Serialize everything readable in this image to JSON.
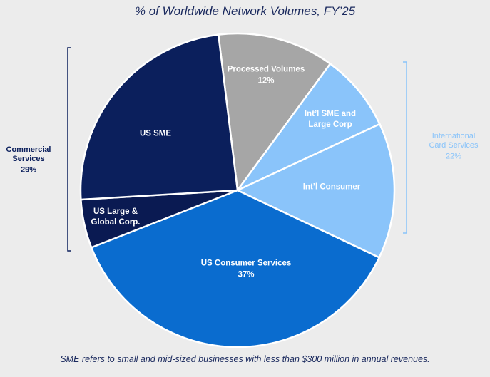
{
  "chart_data": {
    "type": "pie",
    "title": "% of Worldwide Network Volumes, FY’25",
    "categories": [
      "Processed Volumes",
      "Int’l SME and Large Corp",
      "Int’l Consumer",
      "US Consumer Services",
      "US Large & Global Corp.",
      "US SME"
    ],
    "values": [
      12,
      8,
      14,
      37,
      5,
      24
    ],
    "value_labels": [
      "12%",
      null,
      null,
      "37%",
      null,
      null
    ],
    "colors": [
      "#a6a6a6",
      "#8ac4fa",
      "#8ac4fa",
      "#0a6ccf",
      "#0a1a52",
      "#0b1f5c"
    ],
    "groups": [
      {
        "name": "Commercial Services",
        "value": 29,
        "value_label": "29%",
        "color": "#0b1f5c"
      },
      {
        "name": "International Card Services",
        "value": 22,
        "value_label": "22%",
        "color": "#8ac4fa"
      }
    ],
    "footnote": "SME refers to small and mid-sized businesses with less than $300 million in annual revenues."
  }
}
